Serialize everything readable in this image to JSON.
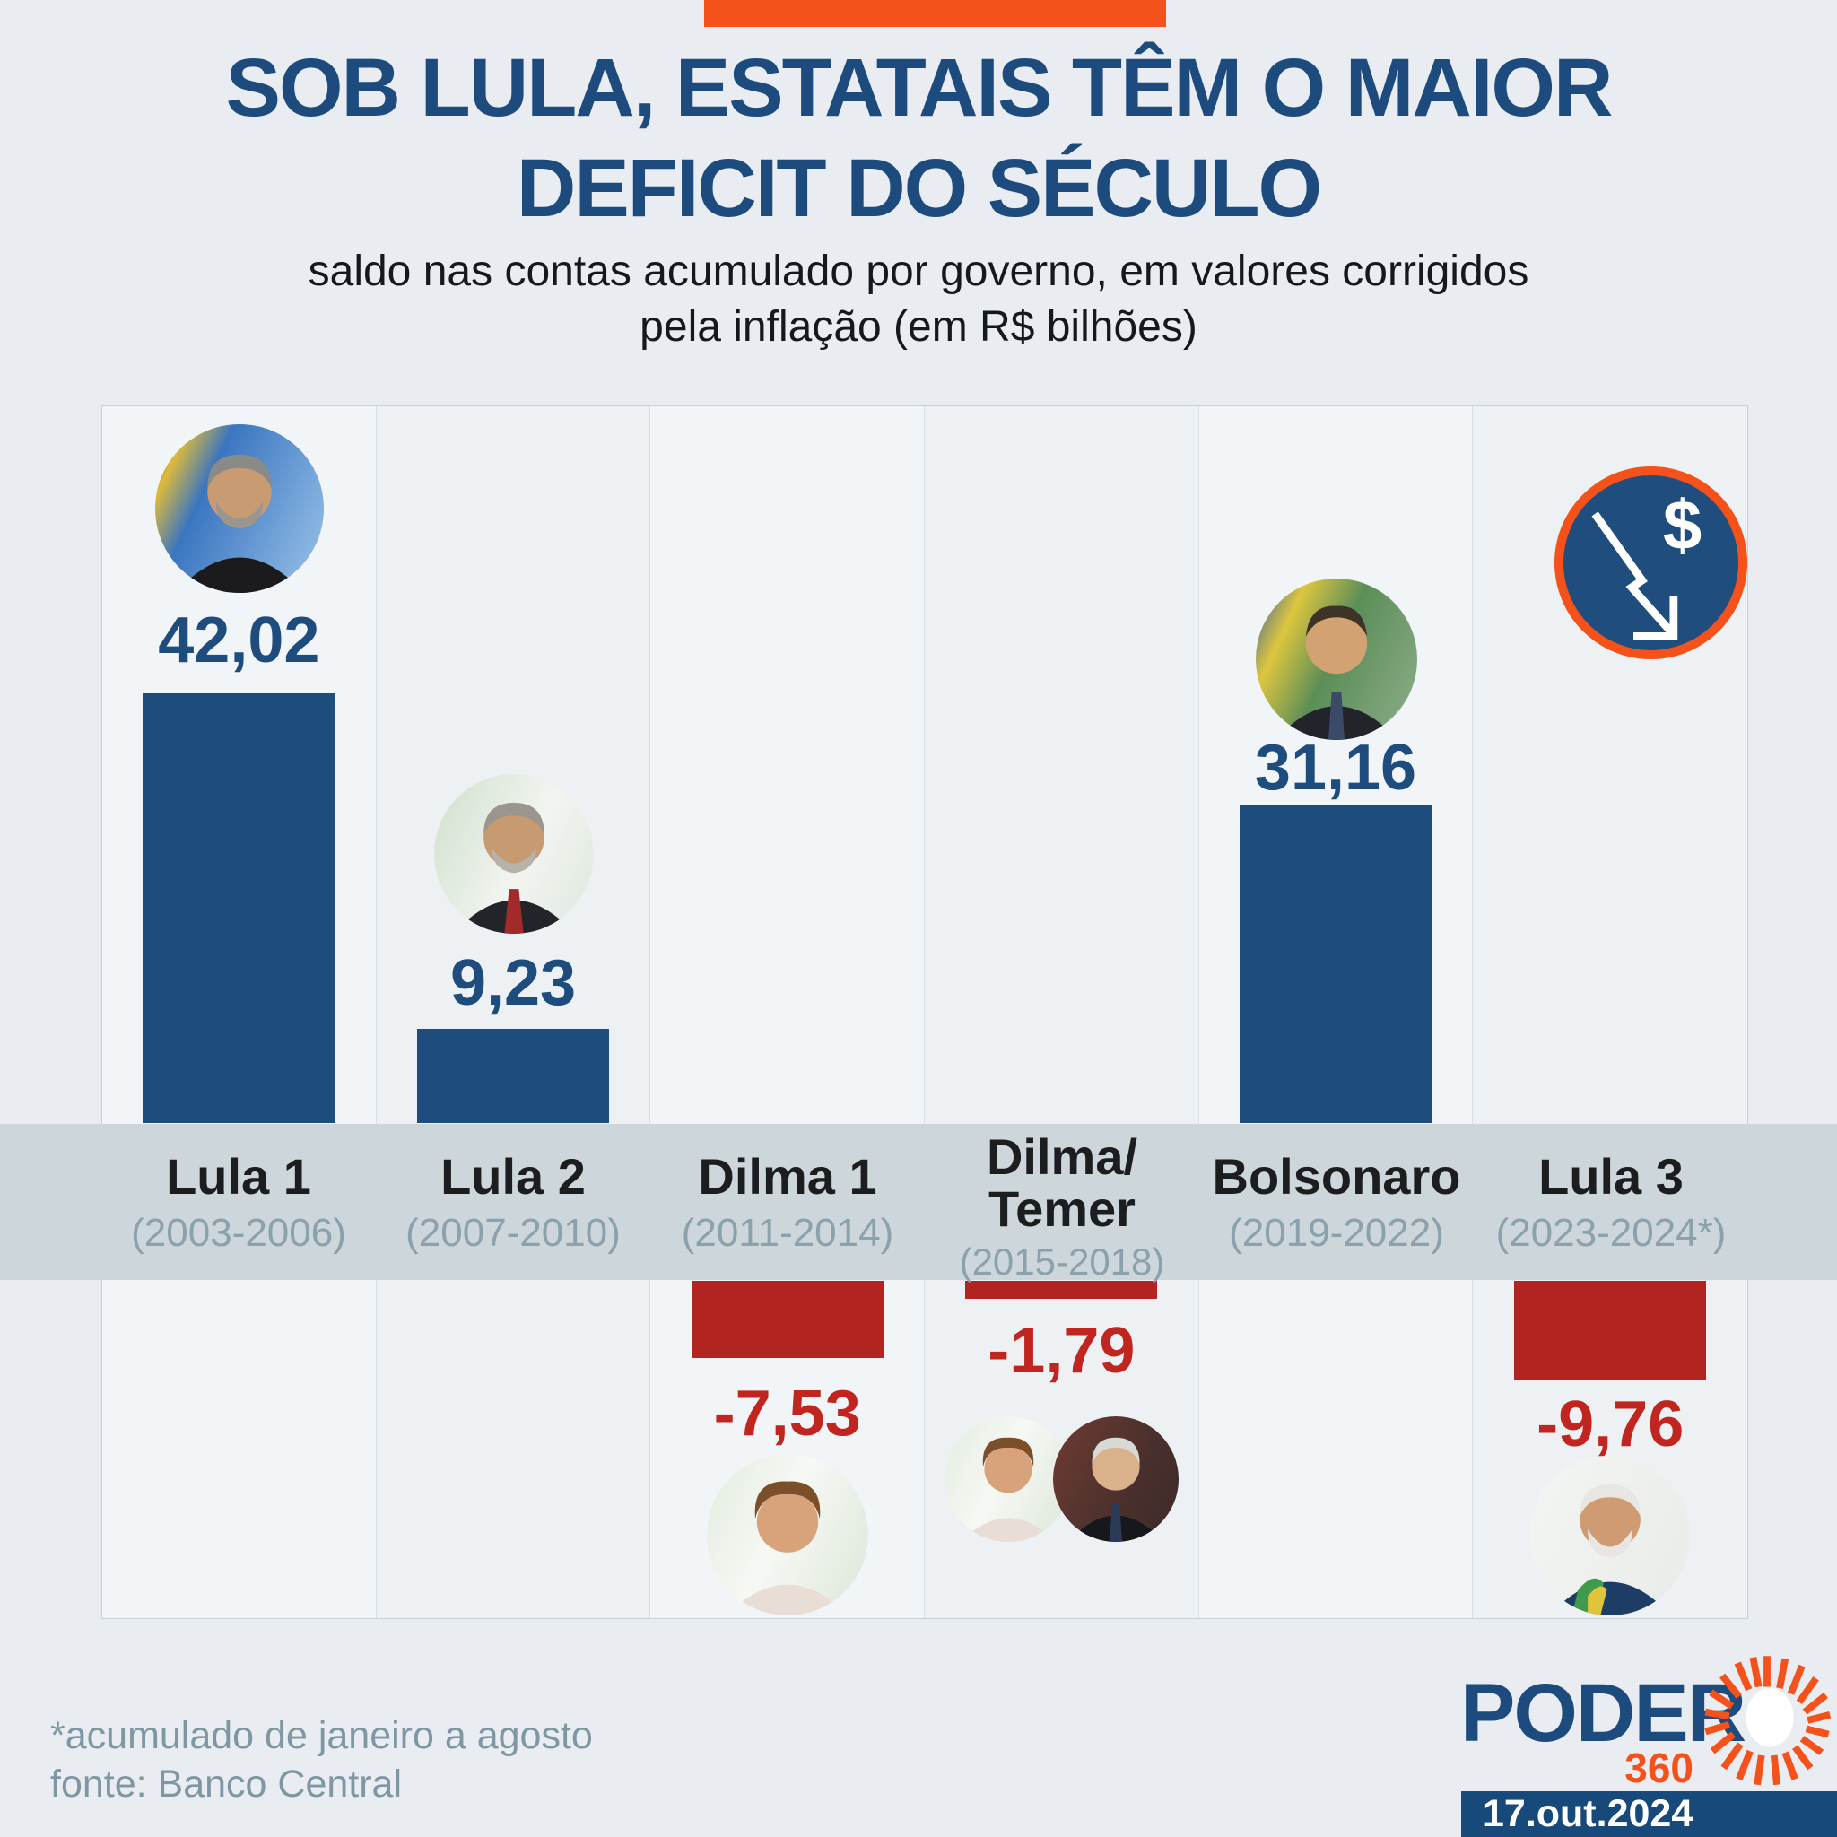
{
  "header": {
    "title_line1": "SOB LULA, ESTATAIS TÊM O MAIOR",
    "title_line2": "DEFICIT DO SÉCULO",
    "subtitle_line1": "saldo nas contas acumulado por governo, em valores corrigidos",
    "subtitle_line2": "pela inflação (em R$ bilhões)"
  },
  "chart_data": {
    "type": "bar",
    "title": "SOB LULA, ESTATAIS TÊM O MAIOR DEFICIT DO SÉCULO",
    "subtitle": "saldo nas contas acumulado por governo, em valores corrigidos pela inflação (em R$ bilhões)",
    "unit": "R$ bilhões",
    "categories": [
      "Lula 1",
      "Lula 2",
      "Dilma 1",
      "Dilma/Temer",
      "Bolsonaro",
      "Lula 3"
    ],
    "periods": [
      "(2003-2006)",
      "(2007-2010)",
      "(2011-2014)",
      "(2015-2018)",
      "(2019-2022)",
      "(2023-2024*)"
    ],
    "values": [
      42.02,
      9.23,
      -7.53,
      -1.79,
      31.16,
      -9.76
    ],
    "value_labels": [
      "42,02",
      "9,23",
      "-7,53",
      "-1,79",
      "31,16",
      "-9,76"
    ],
    "positive_color": "#1e4c7c",
    "negative_color": "#b2241f",
    "baseline": 0,
    "gridlines": false,
    "legend": false,
    "band_color": "#cdd6da"
  },
  "columns": [
    {
      "name": "Lula 1",
      "name2": "",
      "period": "(2003-2006)",
      "value_label": "42,02"
    },
    {
      "name": "Lula 2",
      "name2": "",
      "period": "(2007-2010)",
      "value_label": "9,23"
    },
    {
      "name": "Dilma 1",
      "name2": "",
      "period": "(2011-2014)",
      "value_label": "-7,53"
    },
    {
      "name": "Dilma/",
      "name2": "Temer",
      "period": "(2015-2018)",
      "value_label": "-1,79"
    },
    {
      "name": "Bolsonaro",
      "name2": "",
      "period": "(2019-2022)",
      "value_label": "31,16"
    },
    {
      "name": "Lula 3",
      "name2": "",
      "period": "(2023-2024*)",
      "value_label": "-9,76"
    }
  ],
  "icon": {
    "meaning": "money-decline"
  },
  "footer": {
    "note": "*acumulado de janeiro a agosto",
    "source": "fonte: Banco Central",
    "logo_text": "PODER",
    "logo_sub": "360",
    "date": "17.out.2024"
  }
}
